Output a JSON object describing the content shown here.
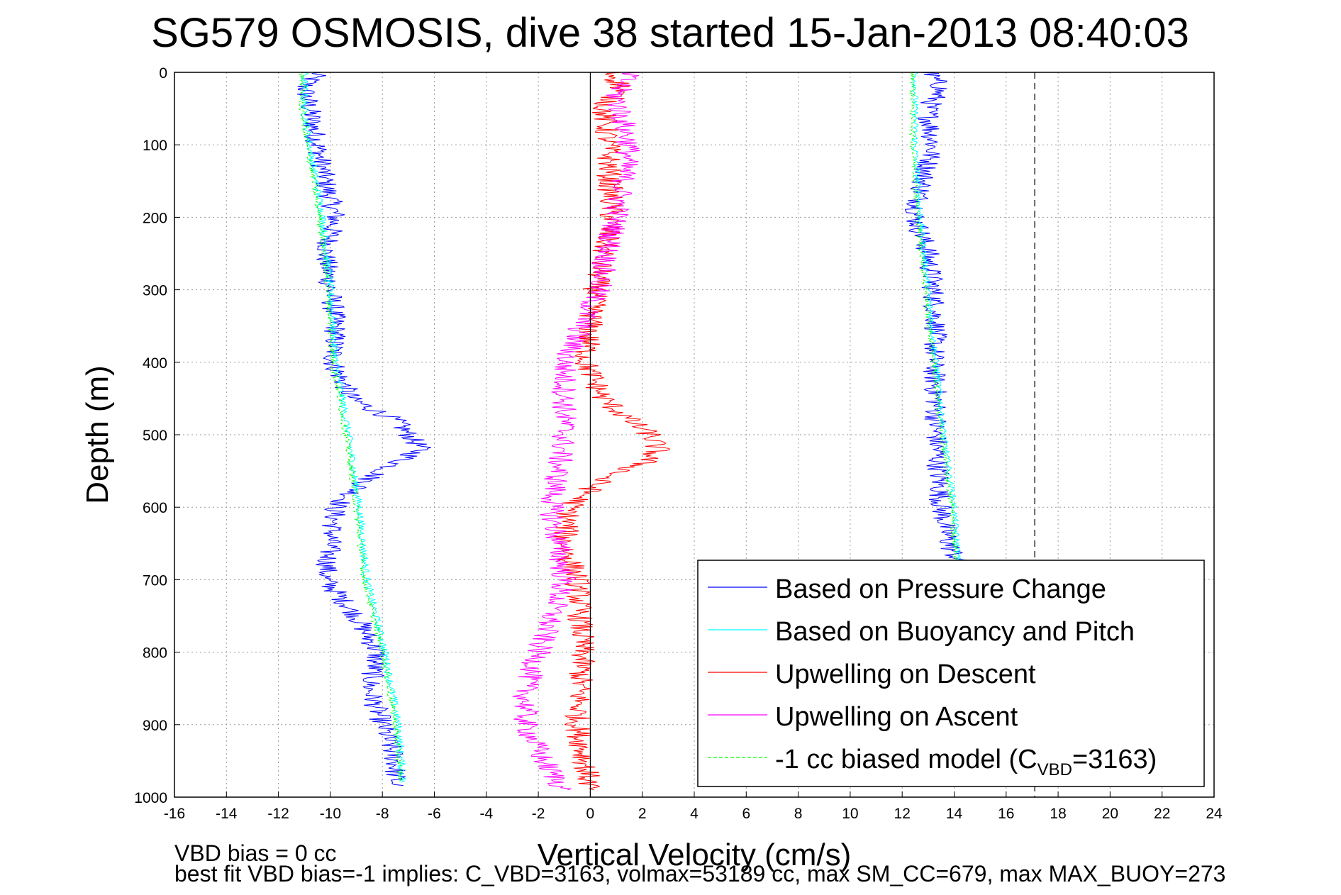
{
  "chart_data": {
    "type": "line",
    "title": "SG579 OSMOSIS, dive 38 started 15-Jan-2013 08:40:03",
    "xlabel": "Vertical Velocity (cm/s)",
    "ylabel": "Depth (m)",
    "xlim": [
      -16,
      24
    ],
    "ylim": [
      0,
      1000
    ],
    "y_reversed": true,
    "grid": true,
    "x_ticks": [
      "-16",
      "-14",
      "-12",
      "-10",
      "-8",
      "-6",
      "-4",
      "-2",
      "0",
      "2",
      "4",
      "6",
      "8",
      "10",
      "12",
      "14",
      "16",
      "18",
      "20",
      "22",
      "24"
    ],
    "y_ticks": [
      "0",
      "100",
      "200",
      "300",
      "400",
      "500",
      "600",
      "700",
      "800",
      "900",
      "1000"
    ],
    "vertical_lines": [
      {
        "x": 0,
        "style": "solid",
        "color": "#000000"
      },
      {
        "x": 17.1,
        "style": "dashed",
        "color": "#000000"
      }
    ],
    "legend_position": "bottom-right",
    "legend": [
      {
        "label": "Based on Pressure Change",
        "color": "#0000ff",
        "style": "solid"
      },
      {
        "label": "Based on Buoyancy and Pitch",
        "color": "#00ffff",
        "style": "solid"
      },
      {
        "label": "Upwelling on Descent",
        "color": "#ff0000",
        "style": "solid"
      },
      {
        "label": "Upwelling on Ascent",
        "color": "#ff00ff",
        "style": "solid"
      },
      {
        "label_prefix": "-1 cc biased model (C",
        "label_sub": "VBD",
        "label_suffix": "=3163)",
        "color": "#00ff00",
        "style": "dashed"
      }
    ],
    "series": [
      {
        "name": "Based on Pressure Change",
        "color": "#0000ff",
        "noise": 0.45,
        "depth": [
          0,
          20,
          50,
          100,
          150,
          200,
          250,
          300,
          350,
          400,
          450,
          480,
          520,
          560,
          600,
          650,
          700,
          750,
          800,
          850,
          900,
          950,
          985
        ],
        "x": [
          -10.5,
          -11,
          -10.8,
          -10.5,
          -10.2,
          -9.8,
          -10.2,
          -10,
          -9.8,
          -9.9,
          -9.2,
          -7.5,
          -6.5,
          -8.5,
          -9.8,
          -10,
          -10.2,
          -9,
          -8.2,
          -8.5,
          -8,
          -7.5,
          -7.5
        ]
      },
      {
        "name": "Based on Pressure Change",
        "color": "#0000ff",
        "noise": 0.45,
        "depth": [
          0,
          20,
          50,
          100,
          150,
          200,
          250,
          300,
          350,
          400,
          450,
          500,
          550,
          600,
          650,
          680
        ],
        "x": [
          13,
          13.5,
          13,
          13.2,
          12.8,
          12.5,
          13,
          13.2,
          13.3,
          13.2,
          13.3,
          13.3,
          13.4,
          13.5,
          13.8,
          14.2
        ]
      },
      {
        "name": "Based on Buoyancy and Pitch",
        "color": "#00ffff",
        "noise": 0.15,
        "depth": [
          0,
          50,
          100,
          200,
          300,
          400,
          500,
          600,
          700,
          800,
          900,
          980
        ],
        "x": [
          -11,
          -11,
          -10.8,
          -10.3,
          -10,
          -9.8,
          -9.3,
          -8.9,
          -8.6,
          -7.9,
          -7.4,
          -7.2
        ]
      },
      {
        "name": "Based on Buoyancy and Pitch",
        "color": "#00ffff",
        "noise": 0.12,
        "depth": [
          0,
          100,
          200,
          300,
          400,
          500,
          600,
          700
        ],
        "x": [
          12.5,
          12.5,
          12.7,
          13,
          13.3,
          13.6,
          14,
          14.2
        ]
      },
      {
        "name": "Upwelling on Descent",
        "color": "#ff0000",
        "noise": 0.5,
        "depth": [
          0,
          20,
          50,
          100,
          200,
          300,
          400,
          450,
          480,
          500,
          520,
          540,
          560,
          600,
          650,
          700,
          800,
          900,
          990
        ],
        "x": [
          0.8,
          1.2,
          0.5,
          0.7,
          0.8,
          0.2,
          -0.2,
          0.5,
          1.5,
          2.3,
          2.6,
          2,
          0.5,
          -0.8,
          -1,
          -0.5,
          -0.3,
          -0.5,
          0
        ]
      },
      {
        "name": "Upwelling on Ascent",
        "color": "#ff00ff",
        "noise": 0.5,
        "depth": [
          0,
          30,
          60,
          100,
          200,
          300,
          400,
          500,
          600,
          700,
          800,
          850,
          900,
          950,
          990
        ],
        "x": [
          1.5,
          1,
          1.2,
          1.5,
          1,
          0.3,
          -1,
          -1,
          -1.5,
          -1,
          -2,
          -2.5,
          -2.5,
          -1.8,
          -1
        ]
      },
      {
        "name": "-1 cc biased model (CVBD=3163)",
        "color": "#00ff00",
        "dashed": true,
        "noise": 0.12,
        "depth": [
          0,
          50,
          100,
          200,
          300,
          400,
          500,
          600,
          700,
          800,
          900,
          980
        ],
        "x": [
          -11.1,
          -11.1,
          -10.9,
          -10.4,
          -10.1,
          -9.9,
          -9.4,
          -9,
          -8.7,
          -8,
          -7.5,
          -7.3
        ]
      },
      {
        "name": "-1 cc biased model (CVBD=3163)",
        "color": "#00ff00",
        "dashed": true,
        "noise": 0.1,
        "depth": [
          0,
          100,
          200,
          300,
          400,
          500,
          600,
          700
        ],
        "x": [
          12.4,
          12.4,
          12.6,
          12.9,
          13.2,
          13.5,
          13.9,
          14.1
        ]
      }
    ],
    "annotations": [
      "VBD bias = 0 cc",
      "best fit VBD bias=-1 implies: C_VBD=3163, volmax=53189 cc, max SM_CC=679, max MAX_BUOY=273"
    ]
  }
}
